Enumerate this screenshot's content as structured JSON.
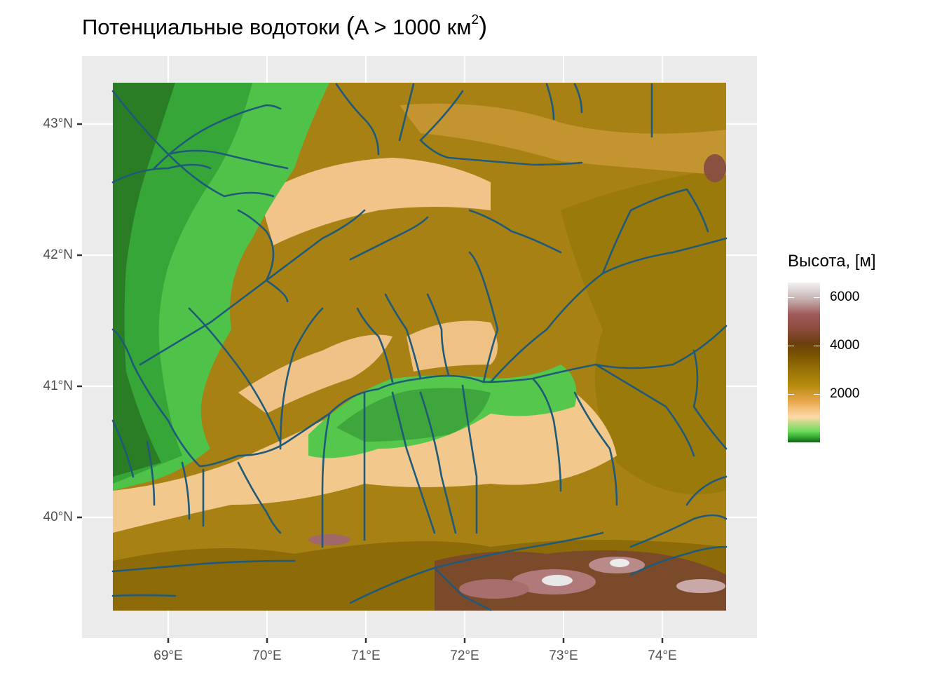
{
  "title": {
    "main": "Потенциальные водотоки",
    "open_paren": "(",
    "condition": "A > 1000 км",
    "exponent": "2",
    "close_paren": ")"
  },
  "axes": {
    "y_ticks": [
      {
        "label": "43°N",
        "lat": 43
      },
      {
        "label": "42°N",
        "lat": 42
      },
      {
        "label": "41°N",
        "lat": 41
      },
      {
        "label": "40°N",
        "lat": 40
      }
    ],
    "x_ticks": [
      {
        "label": "69°E",
        "lon": 69
      },
      {
        "label": "70°E",
        "lon": 70
      },
      {
        "label": "71°E",
        "lon": 71
      },
      {
        "label": "72°E",
        "lon": 72
      },
      {
        "label": "73°E",
        "lon": 73
      },
      {
        "label": "74°E",
        "lon": 74
      }
    ]
  },
  "legend": {
    "title": "Высота, [м]",
    "ticks": [
      {
        "label": "6000",
        "value": 6000
      },
      {
        "label": "4000",
        "value": 4000
      },
      {
        "label": "2000",
        "value": 2000
      }
    ],
    "range": [
      0,
      6600
    ]
  },
  "colors": {
    "panel_background": "#ebebeb",
    "grid": "#ffffff",
    "river": "#1f5a7a",
    "elevation_low": "#1a5c1a",
    "elevation_mid_low": "#6ddc5c",
    "elevation_mid": "#ffd9a8",
    "elevation_high": "#967007",
    "elevation_very_high": "#a05a5a",
    "elevation_peak": "#f2f2f2"
  }
}
